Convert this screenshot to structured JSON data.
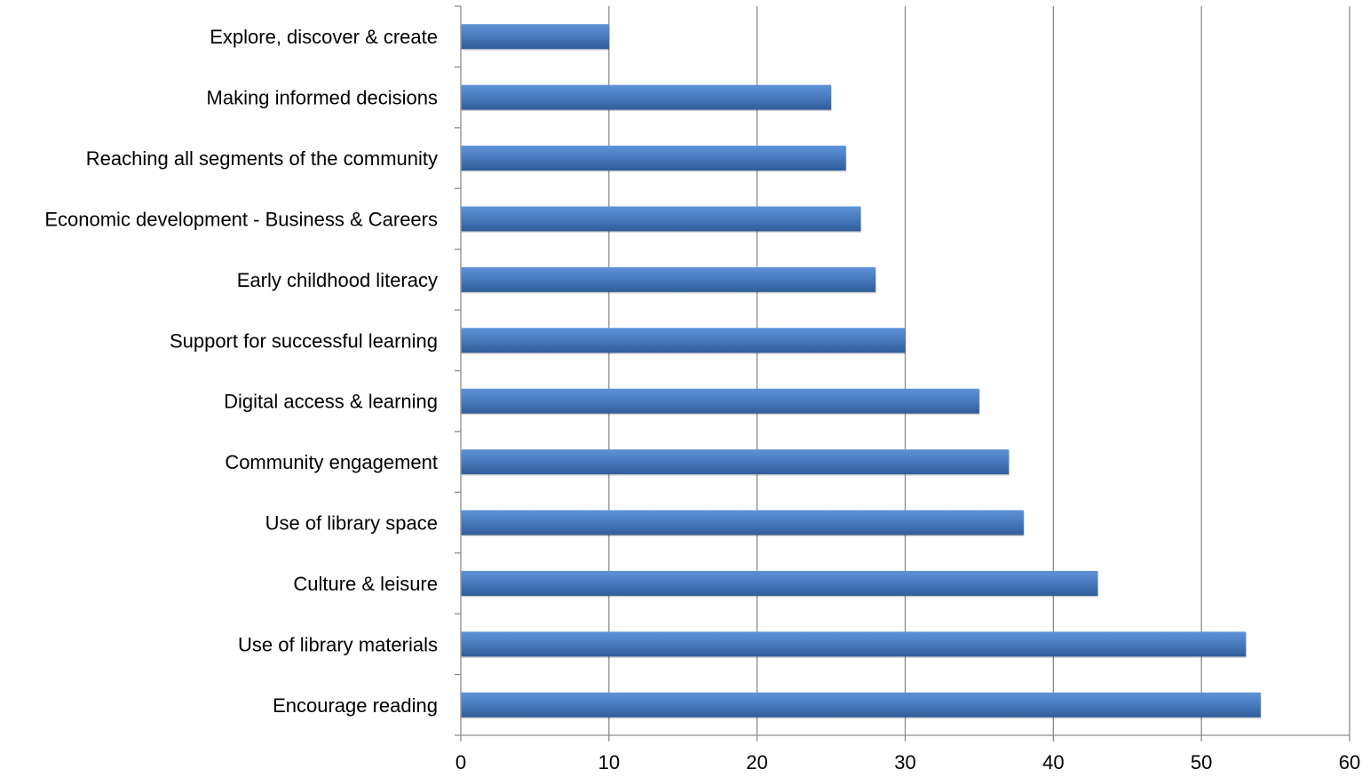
{
  "chart_data": {
    "type": "bar",
    "orientation": "horizontal",
    "categories": [
      "Explore, discover & create",
      "Making informed decisions",
      "Reaching all segments of the community",
      "Economic development - Business & Careers",
      "Early childhood literacy",
      "Support for successful learning",
      "Digital access & learning",
      "Community engagement",
      "Use of library space",
      "Culture & leisure",
      "Use of library materials",
      "Encourage reading"
    ],
    "values": [
      10,
      25,
      26,
      27,
      28,
      30,
      35,
      37,
      38,
      43,
      53,
      54
    ],
    "xlim": [
      0,
      60
    ],
    "xticks": [
      "0",
      "10",
      "20",
      "30",
      "40",
      "50",
      "60"
    ],
    "title": "",
    "xlabel": "",
    "ylabel": "",
    "grid": "vertical",
    "legend": "none",
    "colors": {
      "bar": "#4a7cc0",
      "bar_light": "#5e92d6",
      "bar_dark": "#305d99",
      "grid": "#8c8c8c"
    }
  }
}
